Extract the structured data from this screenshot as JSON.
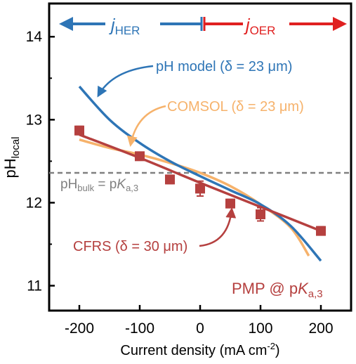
{
  "chart_data": {
    "type": "scatter",
    "title": "",
    "xlabel": "Current density (mA cm",
    "xlabel_sup": "-2",
    "xlabel_end": ")",
    "ylabel_main": "pH",
    "ylabel_sub": "local",
    "xlim": [
      -250,
      250
    ],
    "ylim": [
      10.7,
      14.4
    ],
    "xticks": [
      -200,
      -100,
      0,
      100,
      200
    ],
    "xtick_labels": [
      "-200",
      "-100",
      "0",
      "100",
      "200"
    ],
    "yticks": [
      11,
      12,
      13,
      14
    ],
    "ytick_labels": [
      "11",
      "12",
      "13",
      "14"
    ],
    "grid": false,
    "bulk_line": {
      "y": 12.36,
      "label_main": "pH",
      "label_sub": "bulk",
      "label_mid": " = p",
      "label_italic": "K",
      "label_sub2": "a,3",
      "color": "#808080"
    },
    "series": [
      {
        "kind": "points",
        "color": "#b5403f",
        "x": [
          -200,
          -100,
          -50,
          0,
          50,
          100,
          200
        ],
        "y": [
          12.87,
          12.56,
          12.28,
          12.17,
          11.99,
          11.86,
          11.66
        ],
        "err": [
          0.05,
          0.04,
          0.05,
          0.09,
          0.05,
          0.08,
          0.05
        ]
      },
      {
        "kind": "line",
        "color": "#b5403f",
        "x": [
          -200,
          -100,
          0,
          100,
          200
        ],
        "y": [
          12.82,
          12.54,
          12.24,
          11.95,
          11.66
        ]
      },
      {
        "kind": "line",
        "color": "#2e75b6",
        "x": [
          -200,
          -150,
          -100,
          -50,
          0,
          50,
          100,
          150,
          200
        ],
        "y": [
          13.4,
          13.0,
          12.72,
          12.5,
          12.32,
          12.15,
          11.98,
          11.72,
          11.3
        ]
      },
      {
        "kind": "line",
        "color": "#f6b26b",
        "x": [
          -200,
          -150,
          -100,
          -50,
          0,
          50,
          100,
          150,
          180
        ],
        "y": [
          12.76,
          12.66,
          12.58,
          12.48,
          12.36,
          12.2,
          11.98,
          11.7,
          11.36
        ]
      }
    ],
    "annotations": {
      "ph_model": {
        "prefix": "pH model (δ = 23 ",
        "unit": "μm",
        "suffix": ")",
        "color": "#2e75b6"
      },
      "comsol": {
        "prefix": "COMSOL (δ = 23 ",
        "unit": "μm",
        "suffix": ")",
        "color": "#f6b26b"
      },
      "cfrs": {
        "prefix": "CFRS (δ = 30 ",
        "unit": "μm",
        "suffix": ")",
        "color": "#b5403f"
      },
      "pmp": {
        "prefix": "PMP @ p",
        "italic": "K",
        "sub": "a,3",
        "color": "#b5403f"
      },
      "her": {
        "italic": "j",
        "sub": "HER",
        "color": "#2e75b6"
      },
      "oer": {
        "italic": "j",
        "sub": "OER",
        "color": "#e02020"
      }
    }
  }
}
